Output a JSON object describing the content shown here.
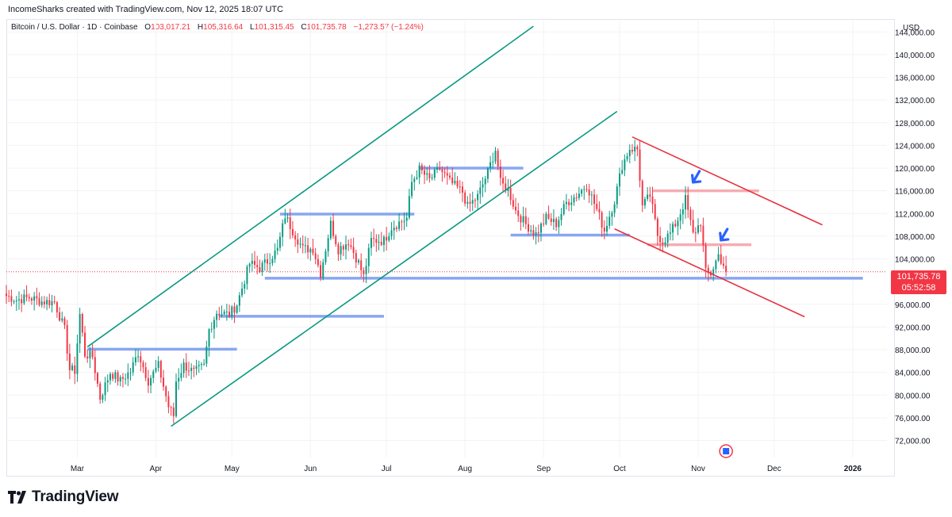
{
  "header": {
    "caption": "IncomeSharks created with TradingView.com, Nov 12, 2025 18:07 UTC"
  },
  "legend": {
    "symbol": "Bitcoin / U.S. Dollar · 1D · Coinbase",
    "open_label": "O",
    "open": "103,017.21",
    "high_label": "H",
    "high": "105,316.64",
    "low_label": "L",
    "low": "101,315.45",
    "close_label": "C",
    "close": "101,735.78",
    "change": "−1,273.57 (−1.24%)"
  },
  "axis": {
    "currency": "USD"
  },
  "price_tag": {
    "price": "101,735.78",
    "countdown": "05:52:58"
  },
  "footer": {
    "brand": "TradingView"
  },
  "colors": {
    "up": "#089981",
    "down": "#f23645",
    "channel_green": "#089981",
    "channel_red": "#e5323f",
    "level_blue": "#7b9cf2",
    "level_pink": "#f5a3ab",
    "arrow": "#2962ff"
  },
  "chart_data": {
    "type": "candlestick",
    "title": "Bitcoin / U.S. Dollar · 1D · Coinbase",
    "x_ticks": [
      "Mar",
      "Apr",
      "May",
      "Jun",
      "Jul",
      "Aug",
      "Sep",
      "Oct",
      "Nov",
      "Dec",
      "2026"
    ],
    "y_ticks": [
      "72,000.00",
      "76,000.00",
      "80,000.00",
      "84,000.00",
      "88,000.00",
      "92,000.00",
      "96,000.00",
      "104,000.00",
      "108,000.00",
      "112,000.00",
      "116,000.00",
      "120,000.00",
      "124,000.00",
      "128,000.00",
      "132,000.00",
      "136,000.00",
      "140,000.00",
      "144,000.00"
    ],
    "ylim": [
      69000,
      146000
    ],
    "xlim": [
      "2025-02-01",
      "2026-01-12"
    ],
    "last_price": 101735.78,
    "close_series": [
      [
        "2025-02-01",
        97500
      ],
      [
        "2025-02-05",
        96800
      ],
      [
        "2025-02-10",
        97200
      ],
      [
        "2025-02-15",
        96500
      ],
      [
        "2025-02-20",
        96400
      ],
      [
        "2025-02-24",
        91500
      ],
      [
        "2025-02-26",
        84500
      ],
      [
        "2025-02-28",
        84300
      ],
      [
        "2025-03-02",
        94200
      ],
      [
        "2025-03-04",
        87200
      ],
      [
        "2025-03-07",
        86800
      ],
      [
        "2025-03-10",
        79500
      ],
      [
        "2025-03-14",
        84000
      ],
      [
        "2025-03-18",
        82500
      ],
      [
        "2025-03-22",
        84200
      ],
      [
        "2025-03-25",
        87500
      ],
      [
        "2025-03-29",
        82500
      ],
      [
        "2025-04-02",
        85200
      ],
      [
        "2025-04-06",
        78000
      ],
      [
        "2025-04-08",
        76400
      ],
      [
        "2025-04-09",
        82500
      ],
      [
        "2025-04-12",
        85300
      ],
      [
        "2025-04-16",
        84000
      ],
      [
        "2025-04-20",
        85100
      ],
      [
        "2025-04-22",
        91500
      ],
      [
        "2025-04-25",
        94600
      ],
      [
        "2025-04-30",
        94200
      ],
      [
        "2025-05-03",
        96000
      ],
      [
        "2025-05-08",
        103200
      ],
      [
        "2025-05-12",
        102400
      ],
      [
        "2025-05-15",
        103600
      ],
      [
        "2025-05-19",
        105600
      ],
      [
        "2025-05-22",
        111600
      ],
      [
        "2025-05-25",
        109000
      ],
      [
        "2025-05-29",
        105800
      ],
      [
        "2025-06-02",
        105800
      ],
      [
        "2025-06-05",
        101500
      ],
      [
        "2025-06-09",
        110200
      ],
      [
        "2025-06-12",
        105700
      ],
      [
        "2025-06-16",
        107100
      ],
      [
        "2025-06-20",
        103300
      ],
      [
        "2025-06-22",
        100900
      ],
      [
        "2025-06-25",
        107300
      ],
      [
        "2025-06-30",
        107200
      ],
      [
        "2025-07-03",
        109600
      ],
      [
        "2025-07-09",
        111200
      ],
      [
        "2025-07-11",
        117500
      ],
      [
        "2025-07-14",
        119800
      ],
      [
        "2025-07-18",
        117900
      ],
      [
        "2025-07-22",
        119900
      ],
      [
        "2025-07-26",
        117600
      ],
      [
        "2025-07-31",
        115800
      ],
      [
        "2025-08-02",
        113200
      ],
      [
        "2025-08-06",
        115000
      ],
      [
        "2025-08-10",
        119300
      ],
      [
        "2025-08-13",
        123300
      ],
      [
        "2025-08-15",
        117400
      ],
      [
        "2025-08-18",
        116200
      ],
      [
        "2025-08-21",
        112500
      ],
      [
        "2025-08-25",
        110100
      ],
      [
        "2025-08-29",
        108400
      ],
      [
        "2025-09-02",
        111200
      ],
      [
        "2025-09-06",
        110200
      ],
      [
        "2025-09-10",
        113900
      ],
      [
        "2025-09-14",
        115200
      ],
      [
        "2025-09-18",
        117100
      ],
      [
        "2025-09-22",
        112700
      ],
      [
        "2025-09-25",
        109000
      ],
      [
        "2025-09-29",
        114300
      ],
      [
        "2025-10-02",
        120500
      ],
      [
        "2025-10-05",
        123500
      ],
      [
        "2025-10-08",
        123300
      ],
      [
        "2025-10-10",
        113200
      ],
      [
        "2025-10-13",
        115200
      ],
      [
        "2025-10-16",
        108200
      ],
      [
        "2025-10-18",
        107100
      ],
      [
        "2025-10-21",
        108500
      ],
      [
        "2025-10-24",
        111000
      ],
      [
        "2025-10-27",
        114500
      ],
      [
        "2025-10-30",
        108300
      ],
      [
        "2025-11-02",
        110500
      ],
      [
        "2025-11-04",
        101600
      ],
      [
        "2025-11-06",
        101400
      ],
      [
        "2025-11-09",
        104700
      ],
      [
        "2025-11-11",
        103000
      ],
      [
        "2025-11-12",
        101735.78
      ]
    ],
    "trendlines": [
      {
        "color": "green",
        "from": [
          "2025-03-05",
          88500
        ],
        "to": [
          "2025-08-28",
          145000
        ]
      },
      {
        "color": "green",
        "from": [
          "2025-04-07",
          74500
        ],
        "to": [
          "2025-09-30",
          130000
        ]
      },
      {
        "color": "red",
        "from": [
          "2025-10-06",
          125500
        ],
        "to": [
          "2025-12-20",
          110000
        ]
      },
      {
        "color": "red",
        "from": [
          "2025-09-29",
          109300
        ],
        "to": [
          "2025-12-13",
          93800
        ]
      }
    ],
    "levels": [
      {
        "color": "blue",
        "price": 88100,
        "from": "2025-03-05",
        "to": "2025-05-03"
      },
      {
        "color": "blue",
        "price": 93900,
        "from": "2025-04-26",
        "to": "2025-06-30"
      },
      {
        "color": "blue",
        "price": 100600,
        "from": "2025-05-14",
        "to": "2026-01-05"
      },
      {
        "color": "blue",
        "price": 111900,
        "from": "2025-05-20",
        "to": "2025-07-12"
      },
      {
        "color": "blue",
        "price": 120000,
        "from": "2025-07-14",
        "to": "2025-08-24"
      },
      {
        "color": "blue",
        "price": 108200,
        "from": "2025-08-19",
        "to": "2025-10-05"
      },
      {
        "color": "pink",
        "price": 116000,
        "from": "2025-10-14",
        "to": "2025-11-25"
      },
      {
        "color": "pink",
        "price": 106500,
        "from": "2025-10-12",
        "to": "2025-11-22"
      }
    ],
    "arrows": [
      [
        "2025-10-30",
        117500
      ],
      [
        "2025-11-10",
        107300
      ]
    ]
  }
}
